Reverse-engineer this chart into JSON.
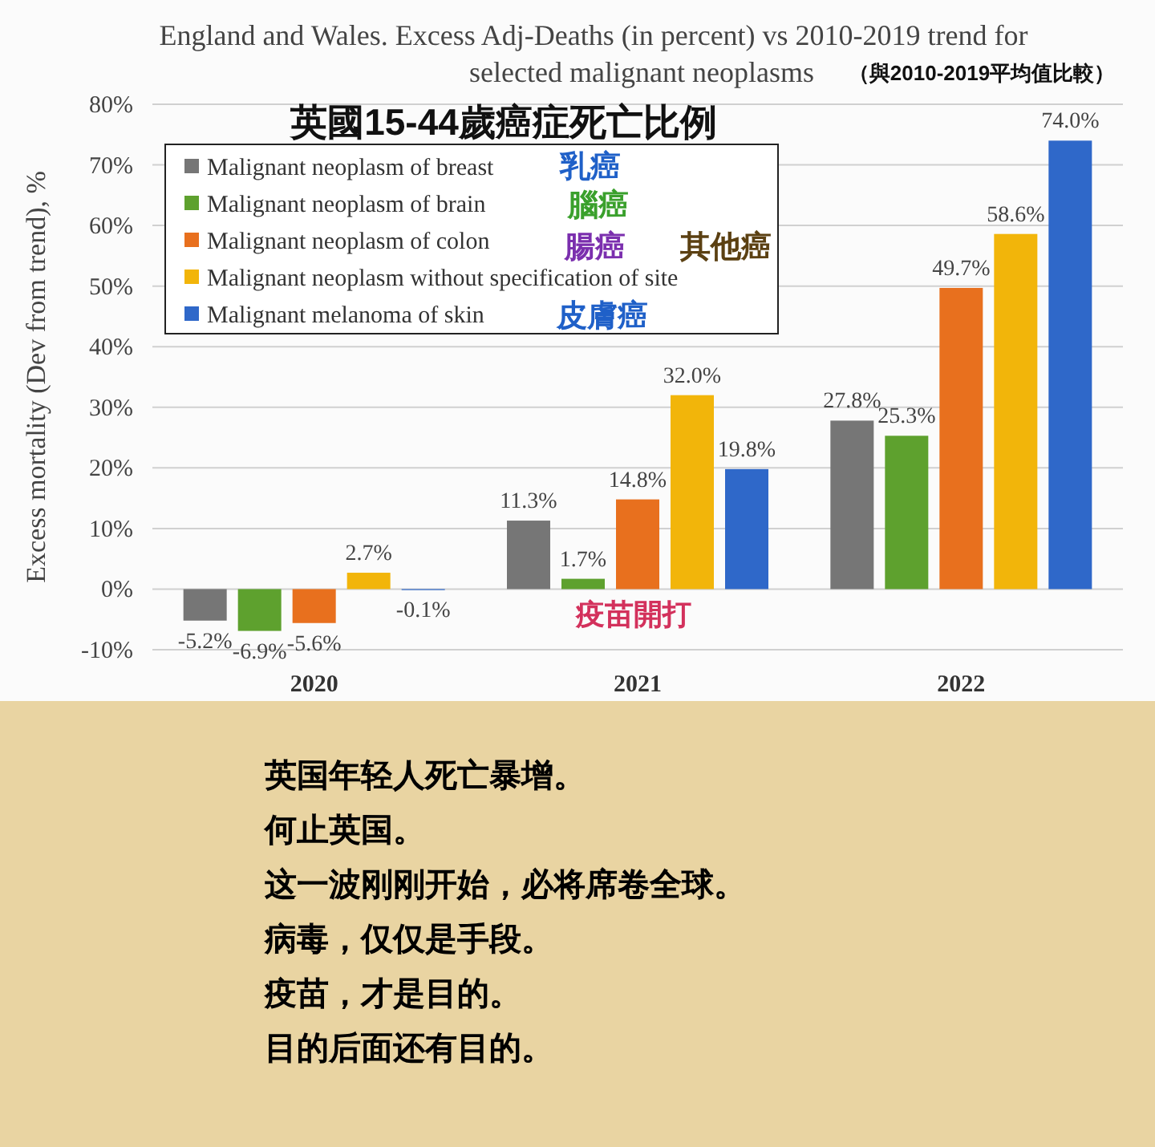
{
  "chart_data": {
    "type": "bar",
    "title": "England and Wales. Excess Adj-Deaths (in percent) vs 2010-2019 trend for selected malignant neoplasms",
    "ylabel": "Excess mortality (Dev from trend), %",
    "categories": [
      "2020",
      "2021",
      "2022"
    ],
    "series": [
      {
        "name": "Malignant neoplasm of breast",
        "color": "#767676",
        "values": [
          -5.2,
          11.3,
          27.8
        ],
        "value_labels": [
          "-5.2%",
          "11.3%",
          "27.8%"
        ]
      },
      {
        "name": "Malignant neoplasm of brain",
        "color": "#5ea12e",
        "values": [
          -6.9,
          1.7,
          25.3
        ],
        "value_labels": [
          "-6.9%",
          "1.7%",
          "25.3%"
        ]
      },
      {
        "name": "Malignant neoplasm of colon",
        "color": "#e8701e",
        "values": [
          -5.6,
          14.8,
          49.7
        ],
        "value_labels": [
          "-5.6%",
          "14.8%",
          "49.7%"
        ]
      },
      {
        "name": "Malignant neoplasm without specification of site",
        "color": "#f2b50a",
        "values": [
          2.7,
          32.0,
          58.6
        ],
        "value_labels": [
          "2.7%",
          "32.0%",
          "58.6%"
        ]
      },
      {
        "name": "Malignant melanoma of skin",
        "color": "#2f68c9",
        "values": [
          -0.1,
          19.8,
          74.0
        ],
        "value_labels": [
          "-0.1%",
          "19.8%",
          "74.0%"
        ]
      }
    ],
    "ylim": [
      -10,
      80
    ],
    "yticks": [
      {
        "value": -10,
        "label": "-10%"
      },
      {
        "value": 0,
        "label": "0%"
      },
      {
        "value": 10,
        "label": "10%"
      },
      {
        "value": 20,
        "label": "20%"
      },
      {
        "value": 30,
        "label": "30%"
      },
      {
        "value": 40,
        "label": "40%"
      },
      {
        "value": 50,
        "label": "50%"
      },
      {
        "value": 60,
        "label": "60%"
      },
      {
        "value": 70,
        "label": "70%"
      },
      {
        "value": 80,
        "label": "80%"
      }
    ],
    "grid": "y",
    "legend": "top left",
    "annotations": [
      "（與2010-2019平均值比較）",
      "英國15-44歲癌症死亡比例",
      "乳癌",
      "腦癌",
      "腸癌",
      "其他癌",
      "皮膚癌",
      "疫苗開打",
      "英国年轻人死亡暴增。",
      "何止英国。",
      "这一波刚刚开始，必将席卷全球。",
      "病毒，仅仅是手段。",
      "疫苗，才是目的。",
      "目的后面还有目的。"
    ]
  }
}
